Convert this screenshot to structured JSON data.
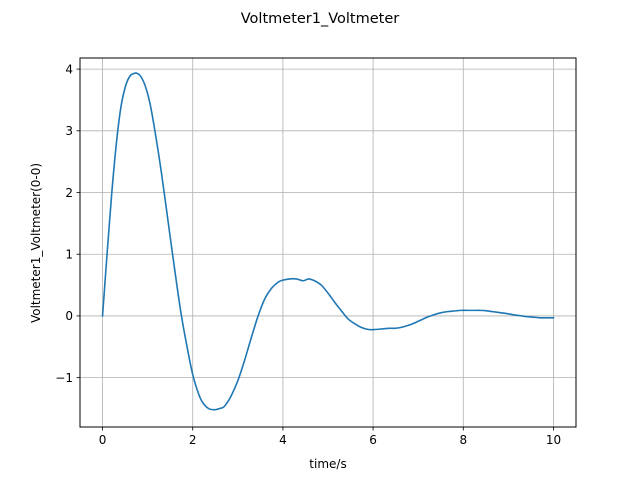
{
  "chart_data": {
    "type": "line",
    "title": "Voltmeter1_Voltmeter",
    "xlabel": "time/s",
    "ylabel": "Voltmeter1_Voltmeter(0-0)",
    "xlim": [
      -0.5,
      10.5
    ],
    "ylim": [
      -1.8,
      4.18
    ],
    "xticks": [
      0,
      2,
      4,
      6,
      8,
      10
    ],
    "xtick_labels": [
      "0",
      "2",
      "4",
      "6",
      "8",
      "10"
    ],
    "yticks": [
      -1,
      0,
      1,
      2,
      3,
      4
    ],
    "ytick_labels": [
      "−1",
      "0",
      "1",
      "2",
      "3",
      "4"
    ],
    "grid": true,
    "line_color": "#1f77b4",
    "series": [
      {
        "x": [
          0,
          0.1,
          0.2,
          0.3,
          0.4,
          0.5,
          0.6,
          0.7,
          0.77,
          0.85,
          0.95,
          1.05,
          1.15,
          1.3,
          1.45,
          1.6,
          1.75,
          1.9,
          2.0,
          2.1,
          2.2,
          2.35,
          2.5,
          2.6,
          2.68,
          2.75,
          2.85,
          3.0,
          3.15,
          3.3,
          3.45,
          3.6,
          3.75,
          3.9,
          4.0,
          4.15,
          4.3,
          4.45,
          4.57,
          4.7,
          4.85,
          5.0,
          5.15,
          5.3,
          5.45,
          5.6,
          5.75,
          5.9,
          6.05,
          6.2,
          6.35,
          6.48,
          6.6,
          6.75,
          6.9,
          7.05,
          7.2,
          7.35,
          7.5,
          7.65,
          7.8,
          7.95,
          8.1,
          8.25,
          8.38,
          8.5,
          8.65,
          8.8,
          8.95,
          9.1,
          9.25,
          9.4,
          9.55,
          9.7,
          9.85,
          10.0
        ],
        "y": [
          0,
          1.0,
          1.95,
          2.75,
          3.35,
          3.7,
          3.88,
          3.93,
          3.93,
          3.88,
          3.72,
          3.45,
          3.05,
          2.35,
          1.55,
          0.75,
          0.0,
          -0.6,
          -0.95,
          -1.2,
          -1.38,
          -1.5,
          -1.52,
          -1.5,
          -1.48,
          -1.42,
          -1.3,
          -1.05,
          -0.72,
          -0.35,
          0.0,
          0.28,
          0.45,
          0.55,
          0.58,
          0.6,
          0.6,
          0.57,
          0.6,
          0.57,
          0.5,
          0.37,
          0.22,
          0.08,
          -0.05,
          -0.13,
          -0.19,
          -0.22,
          -0.22,
          -0.21,
          -0.2,
          -0.2,
          -0.19,
          -0.16,
          -0.12,
          -0.07,
          -0.02,
          0.02,
          0.05,
          0.07,
          0.08,
          0.09,
          0.09,
          0.09,
          0.09,
          0.085,
          0.07,
          0.055,
          0.04,
          0.02,
          0.005,
          -0.01,
          -0.02,
          -0.03,
          -0.03,
          -0.03
        ]
      }
    ]
  }
}
